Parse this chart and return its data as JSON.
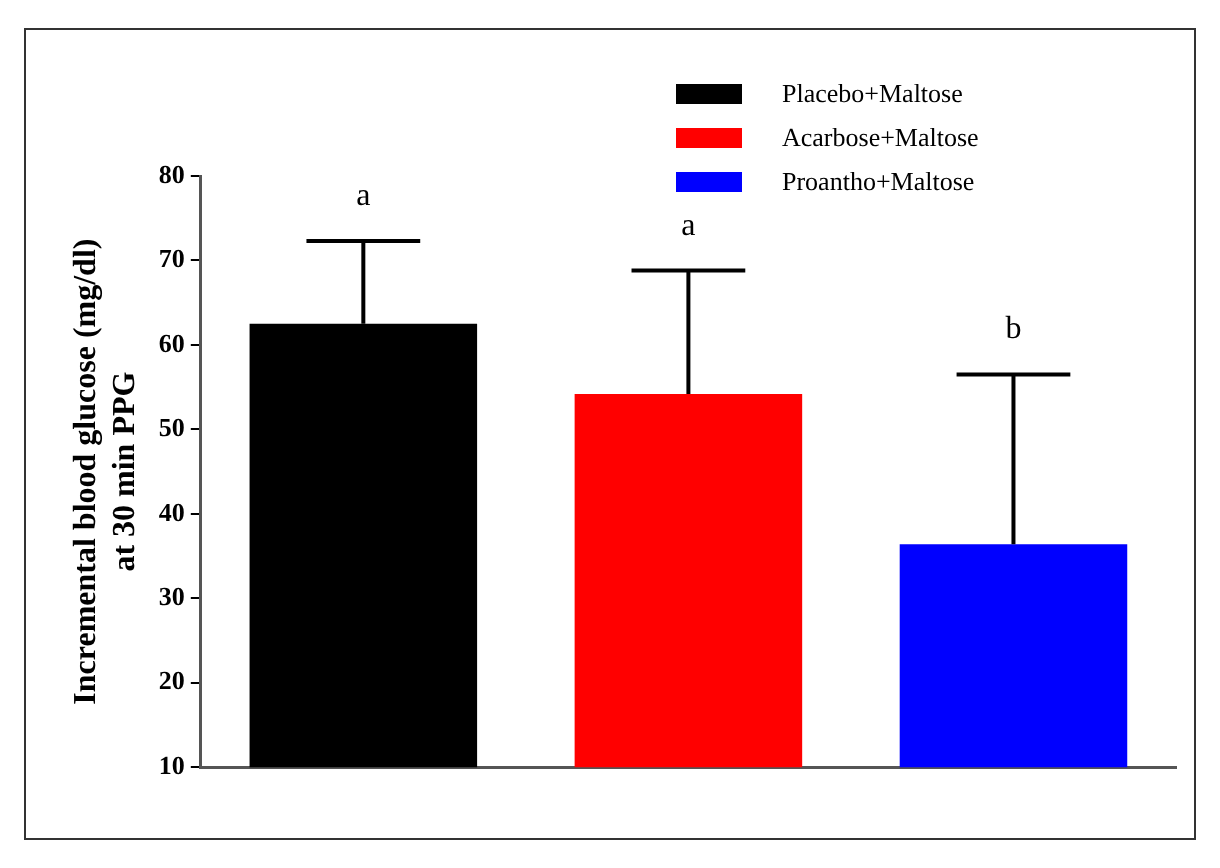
{
  "chart_data": {
    "type": "bar",
    "ylabel": "Incremental blood glucose (mg/dl)\nat 30 min PPG",
    "categories": [
      null,
      null,
      null
    ],
    "series": [
      {
        "name": "Placebo+Maltose",
        "color": "#000000",
        "values": [
          62.5,
          null,
          null
        ],
        "errors": [
          9.8,
          null,
          null
        ]
      },
      {
        "name": "Acarbose+Maltose",
        "color": "#ff0000",
        "values": [
          null,
          54.2,
          null
        ],
        "errors": [
          null,
          14.6,
          null
        ]
      },
      {
        "name": "Proantho+Maltose",
        "color": "#0000ff",
        "values": [
          null,
          null,
          36.4
        ],
        "errors": [
          null,
          null,
          20.1
        ]
      }
    ],
    "annotations": [
      "a",
      "a",
      "b"
    ],
    "ylim": [
      10,
      80
    ],
    "yticks": [
      10,
      20,
      30,
      40,
      50,
      60,
      70,
      80
    ],
    "grid": false,
    "legend": "top right"
  }
}
